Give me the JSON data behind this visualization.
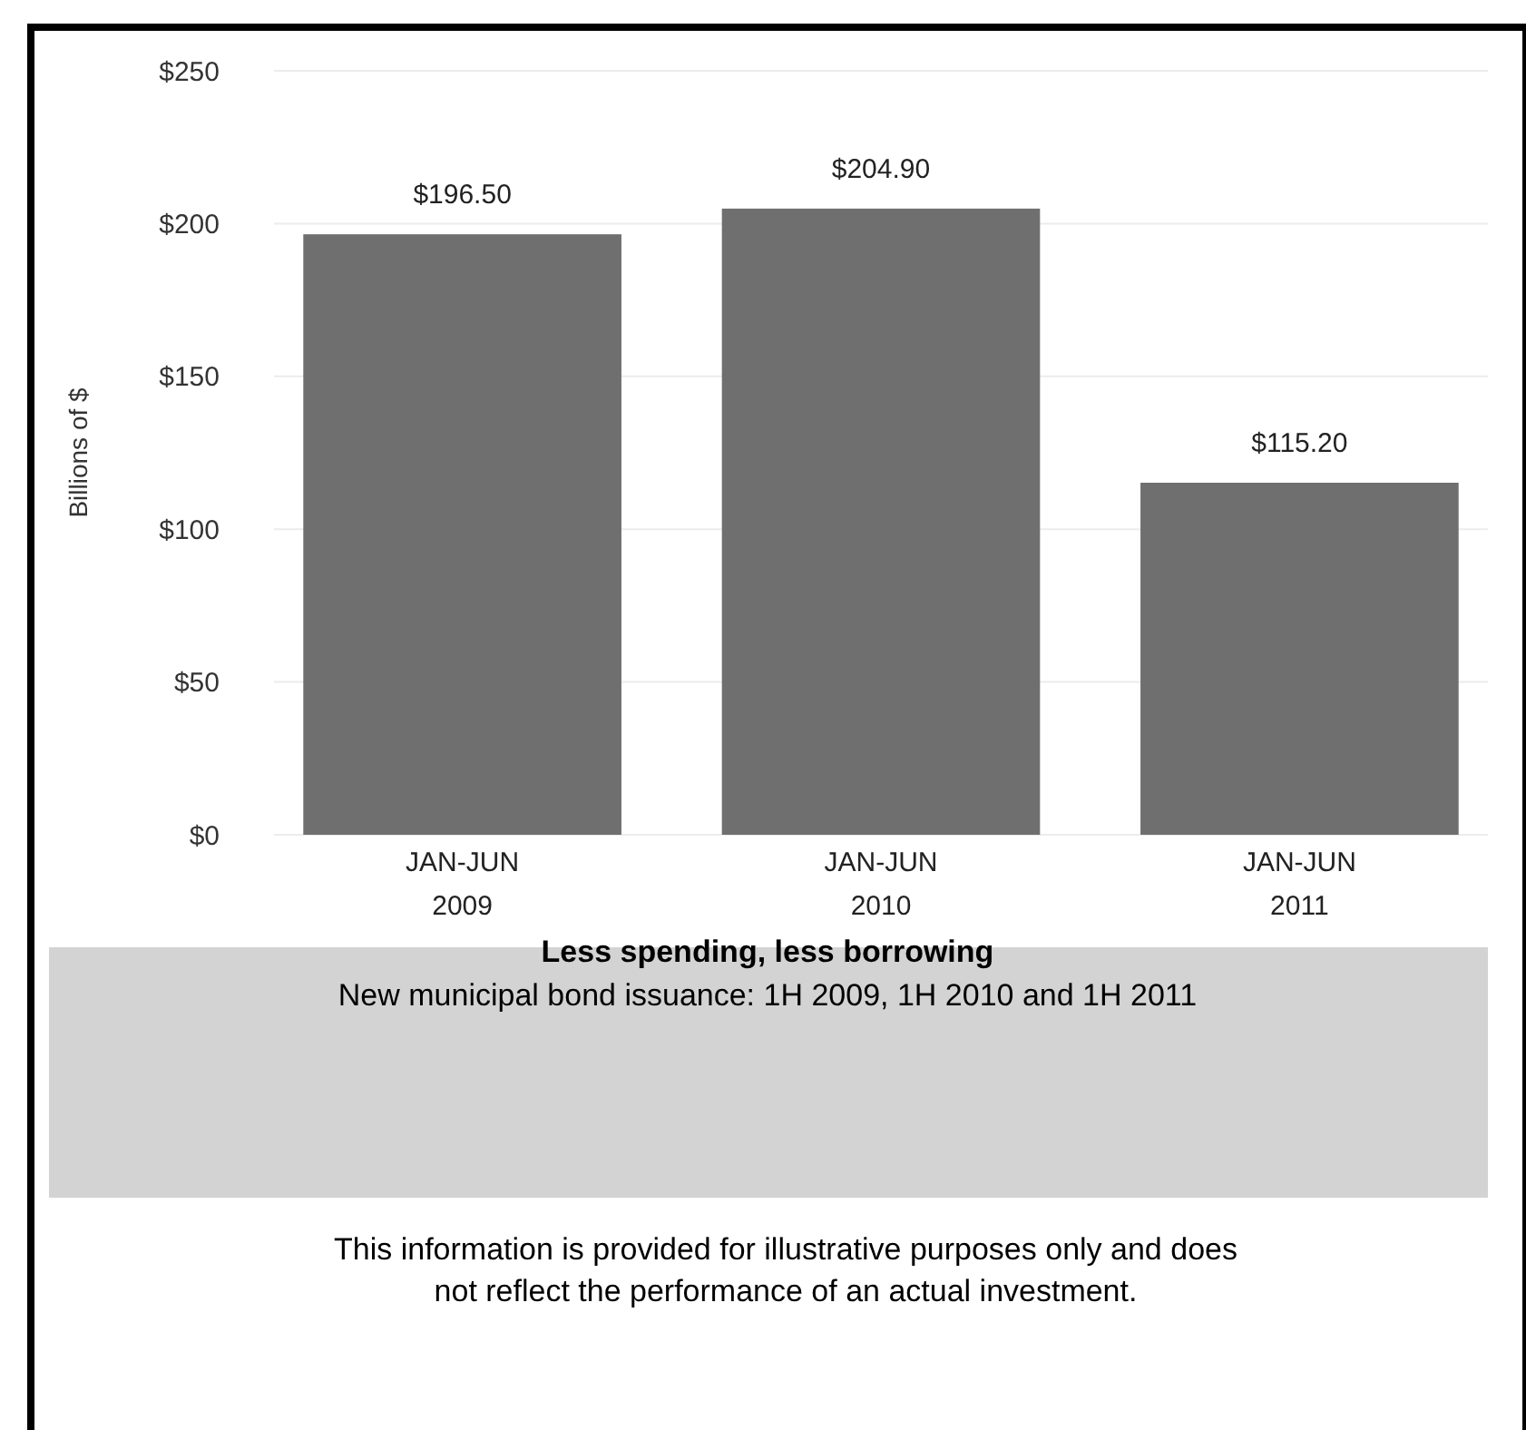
{
  "chart_data": {
    "type": "bar",
    "title": "Less spending, less borrowing",
    "subtitle": "New municipal bond issuance: 1H 2009, 1H 2010 and 1H 2011",
    "ylabel": "Billions of $",
    "categories": [
      "JAN-JUN\n2009",
      "JAN-JUN\n2010",
      "JAN-JUN\n2011"
    ],
    "values": [
      196.5,
      204.9,
      115.2
    ],
    "value_labels": [
      "$196.50",
      "$204.90",
      "$115.20"
    ],
    "color": "#6f6f6f",
    "ylim": [
      0,
      250
    ],
    "yticks": [
      {
        "value": 0,
        "label": "$0"
      },
      {
        "value": 50,
        "label": "$50"
      },
      {
        "value": 100,
        "label": "$100"
      },
      {
        "value": 150,
        "label": "$150"
      },
      {
        "value": 200,
        "label": "$200"
      },
      {
        "value": 250,
        "label": "$250"
      }
    ],
    "grid": "y",
    "annotations": [
      "This information is provided for illustrative purposes only and does not reflect the performance of an actual investment."
    ]
  }
}
